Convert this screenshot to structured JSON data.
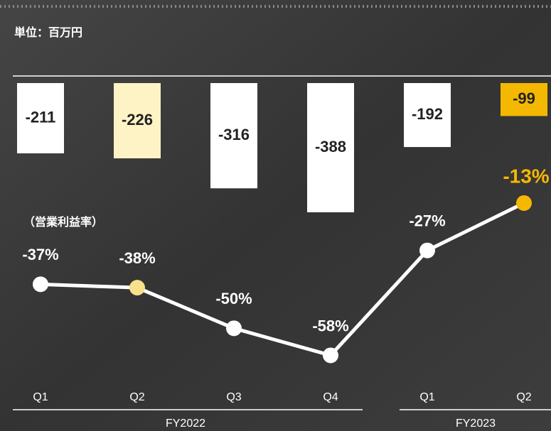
{
  "chart_data": {
    "type": "bar",
    "unit_label": "単位：百万円",
    "groups": [
      {
        "name": "FY2022",
        "categories": [
          "Q1",
          "Q2",
          "Q3",
          "Q4"
        ]
      },
      {
        "name": "FY2023",
        "categories": [
          "Q1",
          "Q2"
        ]
      }
    ],
    "bars": {
      "values": [
        -211,
        -226,
        -316,
        -388,
        -192,
        -99
      ],
      "colors": [
        "#ffffff",
        "#fdf3c4",
        "#ffffff",
        "#ffffff",
        "#ffffff",
        "#f5b800"
      ]
    },
    "ylim": [
      -420,
      0
    ],
    "line": {
      "type": "line",
      "name": "（営業利益率）",
      "axis": "y2",
      "values": [
        -37,
        -38,
        -50,
        -58,
        -27,
        -13
      ],
      "value_labels": [
        "-37%",
        "-38%",
        "-50%",
        "-58%",
        "-27%",
        "-13%"
      ],
      "colors": [
        "#ffffff",
        "#f9e08a",
        "#ffffff",
        "#ffffff",
        "#ffffff",
        "#f5b800"
      ],
      "line_color": "#ffffff"
    },
    "y2lim": [
      -60,
      0
    ]
  }
}
